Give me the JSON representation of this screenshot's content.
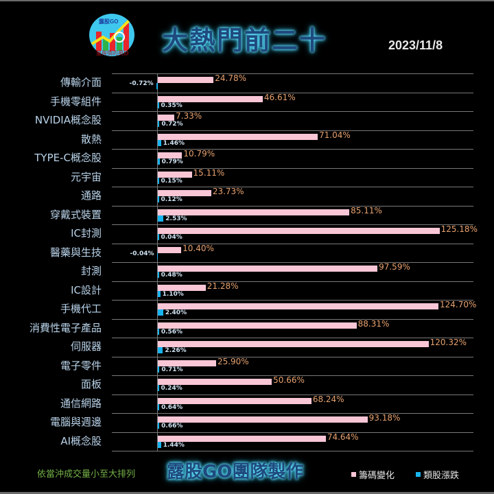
{
  "header": {
    "logo_text": "露股GO",
    "logo_subtext": "量與價的奧妙",
    "title": "大熱門前二十",
    "date": "2023/11/8"
  },
  "footer": {
    "sort_note": "依當沖成交量小至大排列",
    "credit": "露股GO團隊製作"
  },
  "legend": [
    {
      "label": "籌碼變化",
      "color": "#f9c6d6"
    },
    {
      "label": "類股漲跌",
      "color": "#19b4f0"
    }
  ],
  "colors": {
    "background": "#000000",
    "chip_change_bar": "#f9c6d6",
    "sector_change_bar": "#19b4f0",
    "chip_label": "#e8a26f",
    "category_label": "#b9d3ea",
    "gridline": "#7a7a7a"
  },
  "rows": [
    {
      "category": "傳輸介面",
      "chip": "24.78%",
      "sector": "-0.72%"
    },
    {
      "category": "手機零組件",
      "chip": "46.61%",
      "sector": "0.35%"
    },
    {
      "category": "NVIDIA概念股",
      "chip": "7.33%",
      "sector": "0.72%"
    },
    {
      "category": "散熱",
      "chip": "71.04%",
      "sector": "1.46%"
    },
    {
      "category": "TYPE-C概念股",
      "chip": "10.79%",
      "sector": "0.79%"
    },
    {
      "category": "元宇宙",
      "chip": "15.11%",
      "sector": "0.15%"
    },
    {
      "category": "通路",
      "chip": "23.73%",
      "sector": "0.12%"
    },
    {
      "category": "穿戴式裝置",
      "chip": "85.11%",
      "sector": "2.53%"
    },
    {
      "category": "IC封測",
      "chip": "125.18%",
      "sector": "0.04%"
    },
    {
      "category": "醫藥與生技",
      "chip": "10.40%",
      "sector": "-0.04%"
    },
    {
      "category": "封測",
      "chip": "97.59%",
      "sector": "0.48%"
    },
    {
      "category": "IC設計",
      "chip": "21.28%",
      "sector": "1.10%"
    },
    {
      "category": "手機代工",
      "chip": "124.70%",
      "sector": "2.40%"
    },
    {
      "category": "消費性電子產品",
      "chip": "88.31%",
      "sector": "0.56%"
    },
    {
      "category": "伺服器",
      "chip": "120.32%",
      "sector": "2.26%"
    },
    {
      "category": "電子零件",
      "chip": "25.90%",
      "sector": "0.71%"
    },
    {
      "category": "面板",
      "chip": "50.66%",
      "sector": "0.24%"
    },
    {
      "category": "通信網路",
      "chip": "68.24%",
      "sector": "0.64%"
    },
    {
      "category": "電腦與週邊",
      "chip": "93.18%",
      "sector": "0.66%"
    },
    {
      "category": "AI概念股",
      "chip": "74.64%",
      "sector": "1.44%"
    }
  ],
  "chart_data": {
    "type": "bar",
    "orientation": "horizontal",
    "title": "大熱門前二十",
    "subtitle": "2023/11/8",
    "note": "依當沖成交量小至大排列",
    "categories": [
      "傳輸介面",
      "手機零組件",
      "NVIDIA概念股",
      "散熱",
      "TYPE-C概念股",
      "元宇宙",
      "通路",
      "穿戴式裝置",
      "IC封測",
      "醫藥與生技",
      "封測",
      "IC設計",
      "手機代工",
      "消費性電子產品",
      "伺服器",
      "電子零件",
      "面板",
      "通信網路",
      "電腦與週邊",
      "AI概念股"
    ],
    "series": [
      {
        "name": "籌碼變化",
        "color": "#f9c6d6",
        "values": [
          24.78,
          46.61,
          7.33,
          71.04,
          10.79,
          15.11,
          23.73,
          85.11,
          125.18,
          10.4,
          97.59,
          21.28,
          124.7,
          88.31,
          120.32,
          25.9,
          50.66,
          68.24,
          93.18,
          74.64
        ]
      },
      {
        "name": "類股漲跌",
        "color": "#19b4f0",
        "values": [
          -0.72,
          0.35,
          0.72,
          1.46,
          0.79,
          0.15,
          0.12,
          2.53,
          0.04,
          -0.04,
          0.48,
          1.1,
          2.4,
          0.56,
          2.26,
          0.71,
          0.24,
          0.64,
          0.66,
          1.44
        ]
      }
    ],
    "xlabel": "",
    "ylabel": "",
    "unit": "%",
    "grid": true,
    "legend_position": "bottom-right",
    "data_labels": true
  }
}
